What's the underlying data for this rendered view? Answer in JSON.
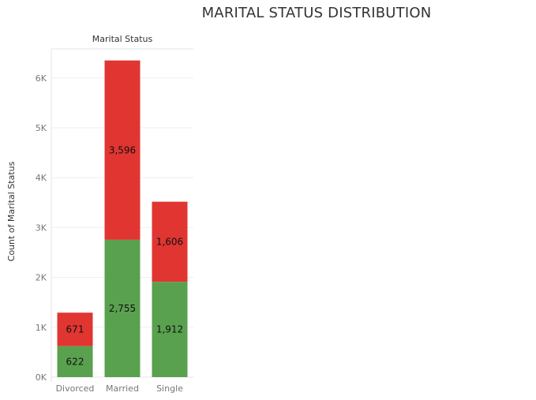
{
  "chart_data": {
    "type": "bar",
    "stacked": true,
    "title": "MARITAL STATUS DISTRIBUTION",
    "header": "Marital Status",
    "xlabel": "",
    "ylabel": "Count of Marital Status",
    "categories": [
      "Divorced",
      "Married",
      "Single"
    ],
    "series": [
      {
        "values": [
          622,
          2755,
          1912
        ],
        "color": "#59a14f"
      },
      {
        "values": [
          671,
          3596,
          1606
        ],
        "color": "#e03531"
      }
    ],
    "ylim": [
      0,
      6700
    ],
    "yticks": [
      0,
      1000,
      2000,
      3000,
      4000,
      5000,
      6000
    ],
    "ytick_labels": [
      "0K",
      "1K",
      "2K",
      "3K",
      "4K",
      "5K",
      "6K"
    ],
    "data_labels": true,
    "grid": "horizontal"
  }
}
